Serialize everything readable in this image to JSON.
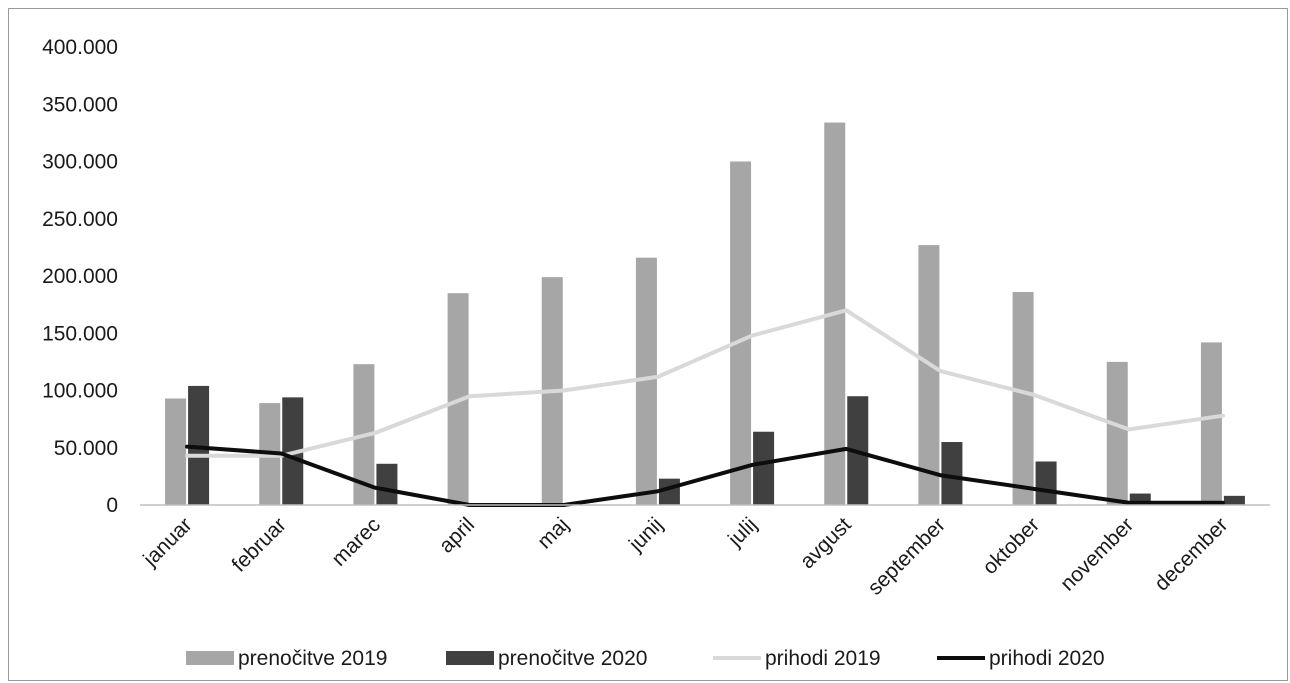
{
  "chart_data": {
    "type": "bar",
    "categories": [
      "januar",
      "februar",
      "marec",
      "april",
      "maj",
      "junij",
      "julij",
      "avgust",
      "september",
      "oktober",
      "november",
      "december"
    ],
    "series": [
      {
        "name": "prenočitve 2019",
        "kind": "bar",
        "color": "#a6a6a6",
        "values": [
          93000,
          89000,
          123000,
          185000,
          199000,
          216000,
          300000,
          334000,
          227000,
          186000,
          125000,
          142000
        ]
      },
      {
        "name": "prenočitve 2020",
        "kind": "bar",
        "color": "#404040",
        "values": [
          104000,
          94000,
          36000,
          0,
          0,
          23000,
          64000,
          95000,
          55000,
          38000,
          10000,
          8000
        ]
      },
      {
        "name": "prihodi 2019",
        "kind": "line",
        "color": "#d9d9d9",
        "values": [
          43000,
          43000,
          63000,
          95000,
          100000,
          112000,
          148000,
          170000,
          117000,
          96000,
          66000,
          78000
        ]
      },
      {
        "name": "prihodi 2020",
        "kind": "line",
        "color": "#0d0d0d",
        "values": [
          51000,
          45000,
          15000,
          0,
          0,
          12000,
          35000,
          49000,
          26000,
          14000,
          2000,
          2000
        ]
      }
    ],
    "ylim": [
      0,
      400000
    ],
    "yticks": [
      0,
      50000,
      100000,
      150000,
      200000,
      250000,
      300000,
      350000,
      400000
    ],
    "ytick_labels": [
      "0",
      "50.000",
      "100.000",
      "150.000",
      "200.000",
      "250.000",
      "300.000",
      "350.000",
      "400.000"
    ],
    "grid": false,
    "legend_position": "bottom"
  }
}
